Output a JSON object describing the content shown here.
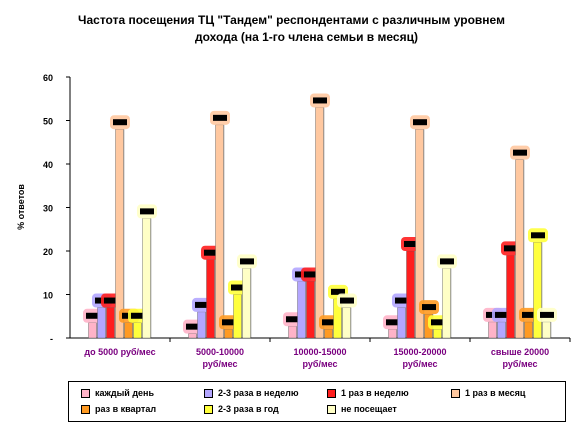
{
  "title_line1": "Частота посещения ТЦ \"Тандем\" респондентами с различным уровнем",
  "title_line2": "дохода (на 1-го члена семьи в месяц)",
  "chart_data": {
    "type": "bar",
    "ylabel": "% ответов",
    "ylim": [
      0,
      60
    ],
    "yticks": [
      0,
      10,
      20,
      30,
      40,
      50,
      60
    ],
    "ytick_labels": [
      "-",
      "10",
      "20",
      "30",
      "40",
      "50",
      "60"
    ],
    "categories": [
      [
        "до 5000 руб/мес"
      ],
      [
        "5000-10000",
        "руб/мес"
      ],
      [
        "10000-15000",
        "руб/мес"
      ],
      [
        "15000-20000",
        "руб/мес"
      ],
      [
        "свыше 20000",
        "руб/мес"
      ]
    ],
    "series": [
      {
        "name": "каждый день",
        "color": "#ffb3c8",
        "values": [
          3.5,
          1,
          2.7,
          2,
          3.7
        ]
      },
      {
        "name": "2-3 раза в неделю",
        "color": "#b3a6ff",
        "values": [
          7,
          6,
          13,
          7,
          3.7
        ]
      },
      {
        "name": "1 раз в неделю",
        "color": "#ff1e1e",
        "values": [
          7,
          18,
          13,
          20,
          19
        ]
      },
      {
        "name": "1 раз в месяц",
        "color": "#ffc8a0",
        "values": [
          48,
          49,
          53,
          48,
          41
        ]
      },
      {
        "name": "раз в квартал",
        "color": "#ff9a22",
        "values": [
          3.5,
          2,
          2,
          5.5,
          3.7
        ]
      },
      {
        "name": "2-3 раза в год",
        "color": "#ffff3c",
        "values": [
          3.5,
          10,
          9,
          2,
          22
        ]
      },
      {
        "name": "не посещает",
        "color": "#ffffc6",
        "values": [
          27.5,
          16,
          7,
          16,
          3.7
        ]
      }
    ],
    "legend_position": "bottom",
    "grid": false
  },
  "legend_rows": [
    [
      "каждый день",
      "2-3 раза в неделю",
      "1 раз в неделю",
      "1 раз в месяц"
    ],
    [
      "раз в квартал",
      "2-3 раза в год",
      "не посещает"
    ]
  ],
  "colors": {
    "category_label": "#7a0080",
    "axis": "#000000"
  }
}
